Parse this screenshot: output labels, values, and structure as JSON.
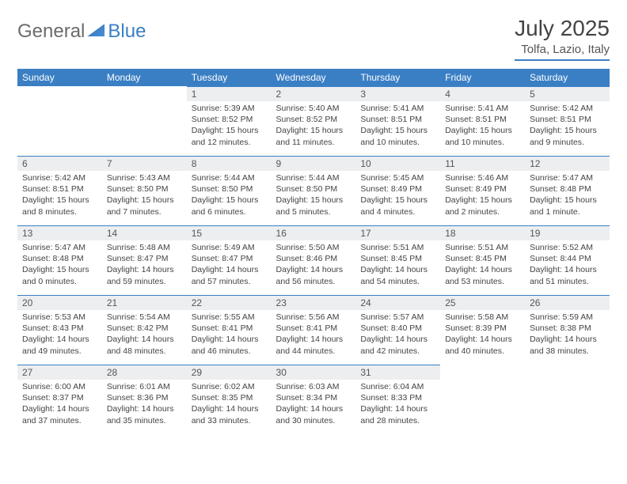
{
  "brand": {
    "part1": "General",
    "part2": "Blue"
  },
  "title": "July 2025",
  "location": "Tolfa, Lazio, Italy",
  "colors": {
    "accent": "#3a7fc4",
    "header_bg": "#3a7fc4",
    "daynum_bg": "#eceef0",
    "text": "#444444"
  },
  "day_names": [
    "Sunday",
    "Monday",
    "Tuesday",
    "Wednesday",
    "Thursday",
    "Friday",
    "Saturday"
  ],
  "weeks": [
    [
      {
        "empty": true
      },
      {
        "empty": true
      },
      {
        "n": "1",
        "sunrise": "5:39 AM",
        "sunset": "8:52 PM",
        "daylight": "15 hours and 12 minutes."
      },
      {
        "n": "2",
        "sunrise": "5:40 AM",
        "sunset": "8:52 PM",
        "daylight": "15 hours and 11 minutes."
      },
      {
        "n": "3",
        "sunrise": "5:41 AM",
        "sunset": "8:51 PM",
        "daylight": "15 hours and 10 minutes."
      },
      {
        "n": "4",
        "sunrise": "5:41 AM",
        "sunset": "8:51 PM",
        "daylight": "15 hours and 10 minutes."
      },
      {
        "n": "5",
        "sunrise": "5:42 AM",
        "sunset": "8:51 PM",
        "daylight": "15 hours and 9 minutes."
      }
    ],
    [
      {
        "n": "6",
        "sunrise": "5:42 AM",
        "sunset": "8:51 PM",
        "daylight": "15 hours and 8 minutes."
      },
      {
        "n": "7",
        "sunrise": "5:43 AM",
        "sunset": "8:50 PM",
        "daylight": "15 hours and 7 minutes."
      },
      {
        "n": "8",
        "sunrise": "5:44 AM",
        "sunset": "8:50 PM",
        "daylight": "15 hours and 6 minutes."
      },
      {
        "n": "9",
        "sunrise": "5:44 AM",
        "sunset": "8:50 PM",
        "daylight": "15 hours and 5 minutes."
      },
      {
        "n": "10",
        "sunrise": "5:45 AM",
        "sunset": "8:49 PM",
        "daylight": "15 hours and 4 minutes."
      },
      {
        "n": "11",
        "sunrise": "5:46 AM",
        "sunset": "8:49 PM",
        "daylight": "15 hours and 2 minutes."
      },
      {
        "n": "12",
        "sunrise": "5:47 AM",
        "sunset": "8:48 PM",
        "daylight": "15 hours and 1 minute."
      }
    ],
    [
      {
        "n": "13",
        "sunrise": "5:47 AM",
        "sunset": "8:48 PM",
        "daylight": "15 hours and 0 minutes."
      },
      {
        "n": "14",
        "sunrise": "5:48 AM",
        "sunset": "8:47 PM",
        "daylight": "14 hours and 59 minutes."
      },
      {
        "n": "15",
        "sunrise": "5:49 AM",
        "sunset": "8:47 PM",
        "daylight": "14 hours and 57 minutes."
      },
      {
        "n": "16",
        "sunrise": "5:50 AM",
        "sunset": "8:46 PM",
        "daylight": "14 hours and 56 minutes."
      },
      {
        "n": "17",
        "sunrise": "5:51 AM",
        "sunset": "8:45 PM",
        "daylight": "14 hours and 54 minutes."
      },
      {
        "n": "18",
        "sunrise": "5:51 AM",
        "sunset": "8:45 PM",
        "daylight": "14 hours and 53 minutes."
      },
      {
        "n": "19",
        "sunrise": "5:52 AM",
        "sunset": "8:44 PM",
        "daylight": "14 hours and 51 minutes."
      }
    ],
    [
      {
        "n": "20",
        "sunrise": "5:53 AM",
        "sunset": "8:43 PM",
        "daylight": "14 hours and 49 minutes."
      },
      {
        "n": "21",
        "sunrise": "5:54 AM",
        "sunset": "8:42 PM",
        "daylight": "14 hours and 48 minutes."
      },
      {
        "n": "22",
        "sunrise": "5:55 AM",
        "sunset": "8:41 PM",
        "daylight": "14 hours and 46 minutes."
      },
      {
        "n": "23",
        "sunrise": "5:56 AM",
        "sunset": "8:41 PM",
        "daylight": "14 hours and 44 minutes."
      },
      {
        "n": "24",
        "sunrise": "5:57 AM",
        "sunset": "8:40 PM",
        "daylight": "14 hours and 42 minutes."
      },
      {
        "n": "25",
        "sunrise": "5:58 AM",
        "sunset": "8:39 PM",
        "daylight": "14 hours and 40 minutes."
      },
      {
        "n": "26",
        "sunrise": "5:59 AM",
        "sunset": "8:38 PM",
        "daylight": "14 hours and 38 minutes."
      }
    ],
    [
      {
        "n": "27",
        "sunrise": "6:00 AM",
        "sunset": "8:37 PM",
        "daylight": "14 hours and 37 minutes."
      },
      {
        "n": "28",
        "sunrise": "6:01 AM",
        "sunset": "8:36 PM",
        "daylight": "14 hours and 35 minutes."
      },
      {
        "n": "29",
        "sunrise": "6:02 AM",
        "sunset": "8:35 PM",
        "daylight": "14 hours and 33 minutes."
      },
      {
        "n": "30",
        "sunrise": "6:03 AM",
        "sunset": "8:34 PM",
        "daylight": "14 hours and 30 minutes."
      },
      {
        "n": "31",
        "sunrise": "6:04 AM",
        "sunset": "8:33 PM",
        "daylight": "14 hours and 28 minutes."
      },
      {
        "empty": true
      },
      {
        "empty": true
      }
    ]
  ],
  "labels": {
    "sunrise": "Sunrise:",
    "sunset": "Sunset:",
    "daylight": "Daylight:"
  }
}
